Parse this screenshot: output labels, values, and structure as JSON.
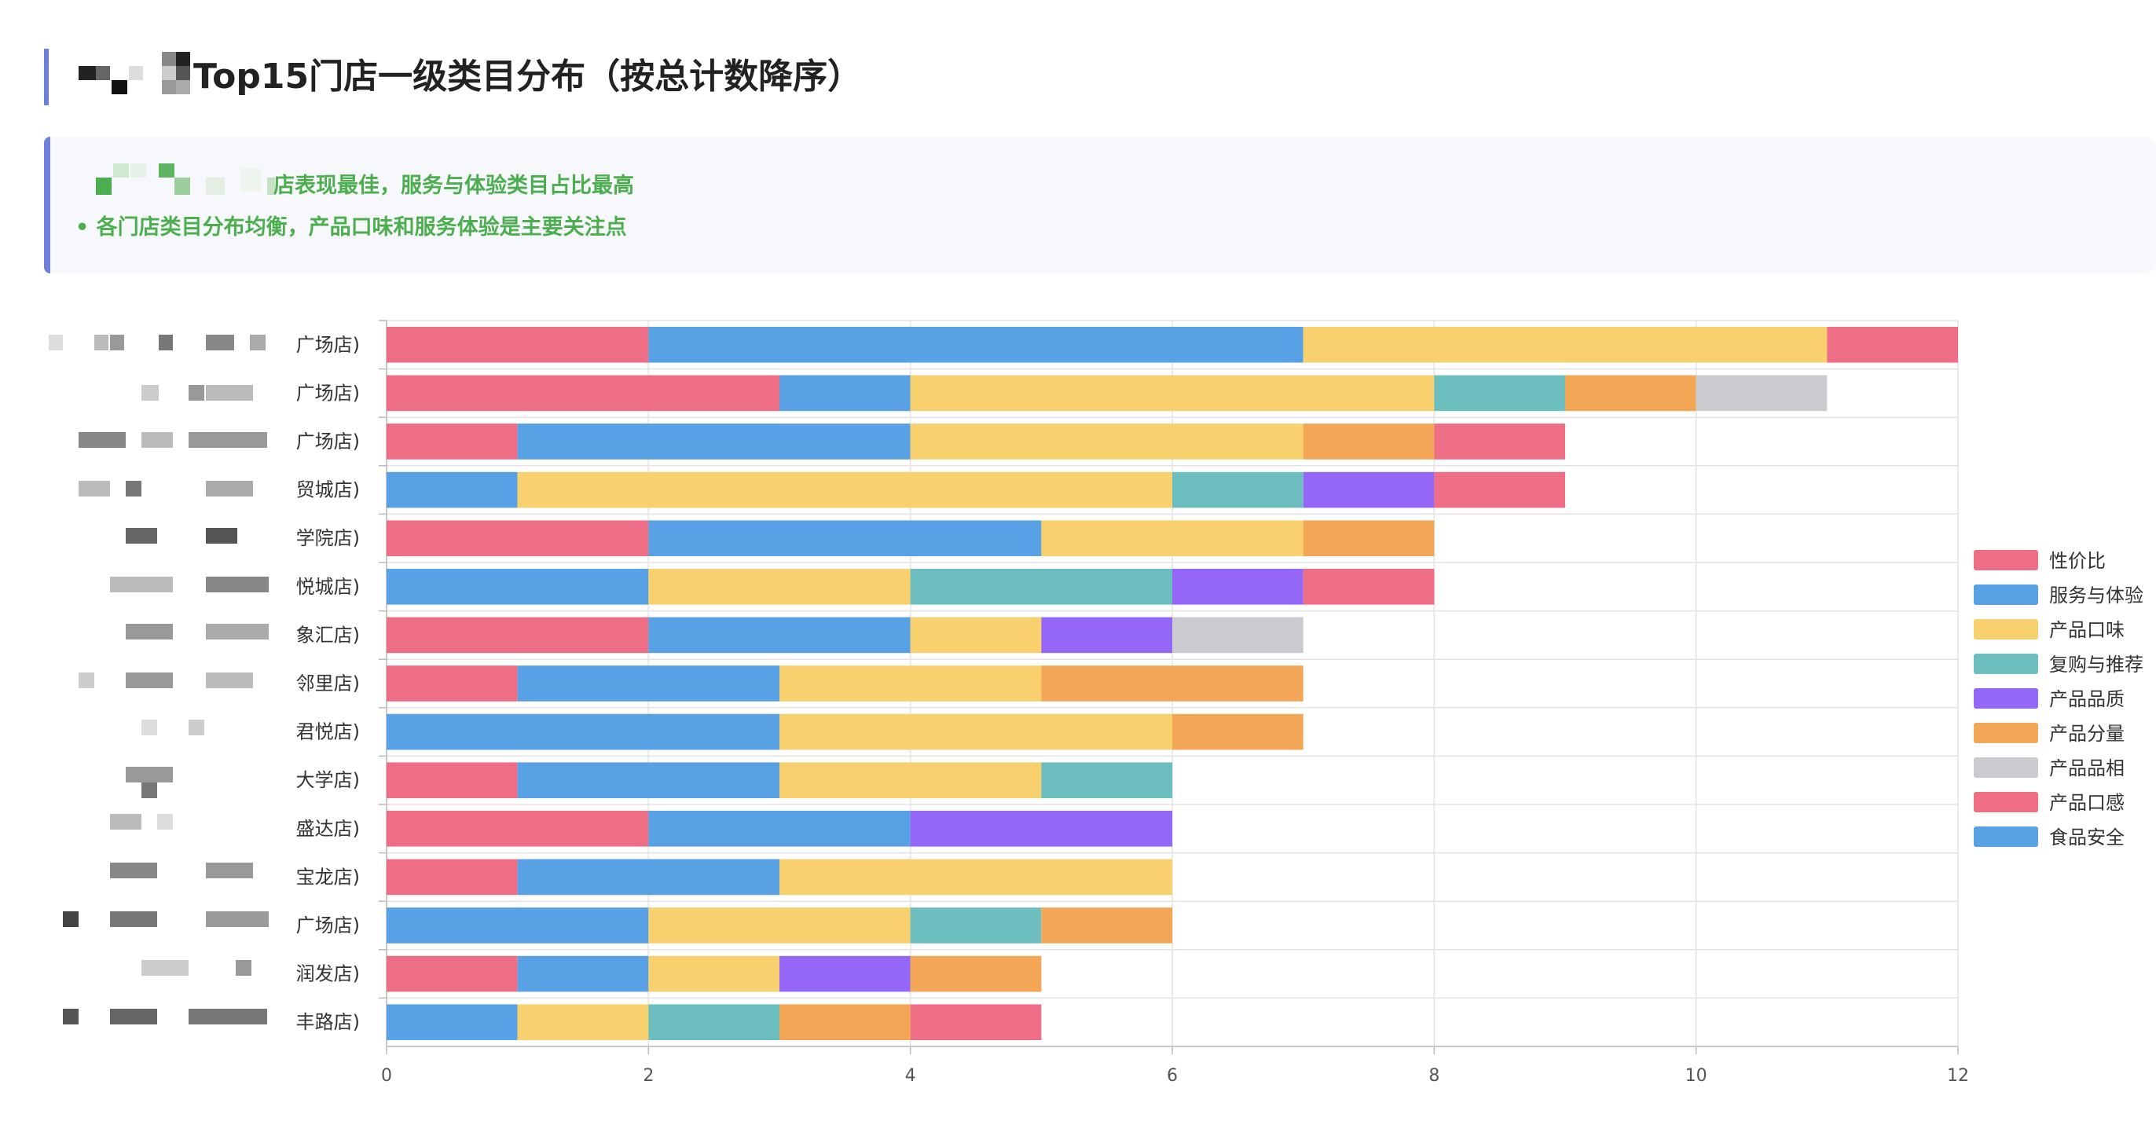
{
  "header": {
    "title": "Top15门店一级类目分布（按总计数降序）"
  },
  "summary": {
    "line1": "店表现最佳，服务与体验类目占比最高",
    "line2": "• 各门店类目分布均衡，产品口味和服务体验是主要关注点"
  },
  "colors": {
    "accent": "#6e7fdb",
    "summary_text": "#4cae4f",
    "summary_bg": "#f6f8fb"
  },
  "chart_data": {
    "type": "bar",
    "orientation": "horizontal",
    "stacked": true,
    "categories": [
      "广场店)",
      "广场店)",
      "广场店)",
      "贸城店)",
      "学院店)",
      "悦城店)",
      "象汇店)",
      "邻里店)",
      "君悦店)",
      "大学店)",
      "盛达店)",
      "宝龙店)",
      "广场店)",
      "润发店)",
      "丰路店)"
    ],
    "series": [
      {
        "name": "性价比",
        "color": "#ee6e85",
        "values": [
          2,
          3,
          1,
          0,
          2,
          0,
          2,
          1,
          0,
          1,
          2,
          1,
          0,
          1,
          0
        ]
      },
      {
        "name": "服务与体验",
        "color": "#58a1e5",
        "values": [
          5,
          1,
          3,
          1,
          3,
          2,
          2,
          2,
          3,
          2,
          2,
          2,
          2,
          1,
          1
        ]
      },
      {
        "name": "产品口味",
        "color": "#f8d06d",
        "values": [
          4,
          4,
          3,
          5,
          2,
          2,
          1,
          2,
          3,
          2,
          0,
          3,
          2,
          1,
          1
        ]
      },
      {
        "name": "复购与推荐",
        "color": "#6dbfbf",
        "values": [
          0,
          1,
          0,
          1,
          0,
          2,
          0,
          0,
          0,
          1,
          0,
          0,
          1,
          0,
          1
        ]
      },
      {
        "name": "产品品质",
        "color": "#9467f6",
        "values": [
          0,
          0,
          0,
          1,
          0,
          1,
          1,
          0,
          0,
          0,
          2,
          0,
          0,
          1,
          0
        ]
      },
      {
        "name": "产品分量",
        "color": "#f4a657",
        "values": [
          0,
          1,
          1,
          0,
          1,
          0,
          0,
          2,
          1,
          0,
          0,
          0,
          1,
          1,
          1
        ]
      },
      {
        "name": "产品品相",
        "color": "#c9cbcf",
        "values": [
          0,
          1,
          0,
          0,
          0,
          0,
          1,
          0,
          0,
          0,
          0,
          0,
          0,
          0,
          0
        ]
      },
      {
        "name": "产品口感",
        "color": "#ee6e85",
        "values": [
          1,
          0,
          1,
          1,
          0,
          1,
          0,
          0,
          0,
          0,
          0,
          0,
          0,
          0,
          1
        ]
      },
      {
        "name": "食品安全",
        "color": "#58a1e5",
        "values": [
          0,
          0,
          0,
          0,
          0,
          0,
          0,
          0,
          0,
          0,
          0,
          0,
          0,
          0,
          0
        ]
      }
    ],
    "xlim": [
      0,
      12
    ],
    "x_ticks": [
      "0",
      "2",
      "4",
      "6",
      "8",
      "10",
      "12"
    ],
    "grid": true,
    "legend_position": "right"
  }
}
